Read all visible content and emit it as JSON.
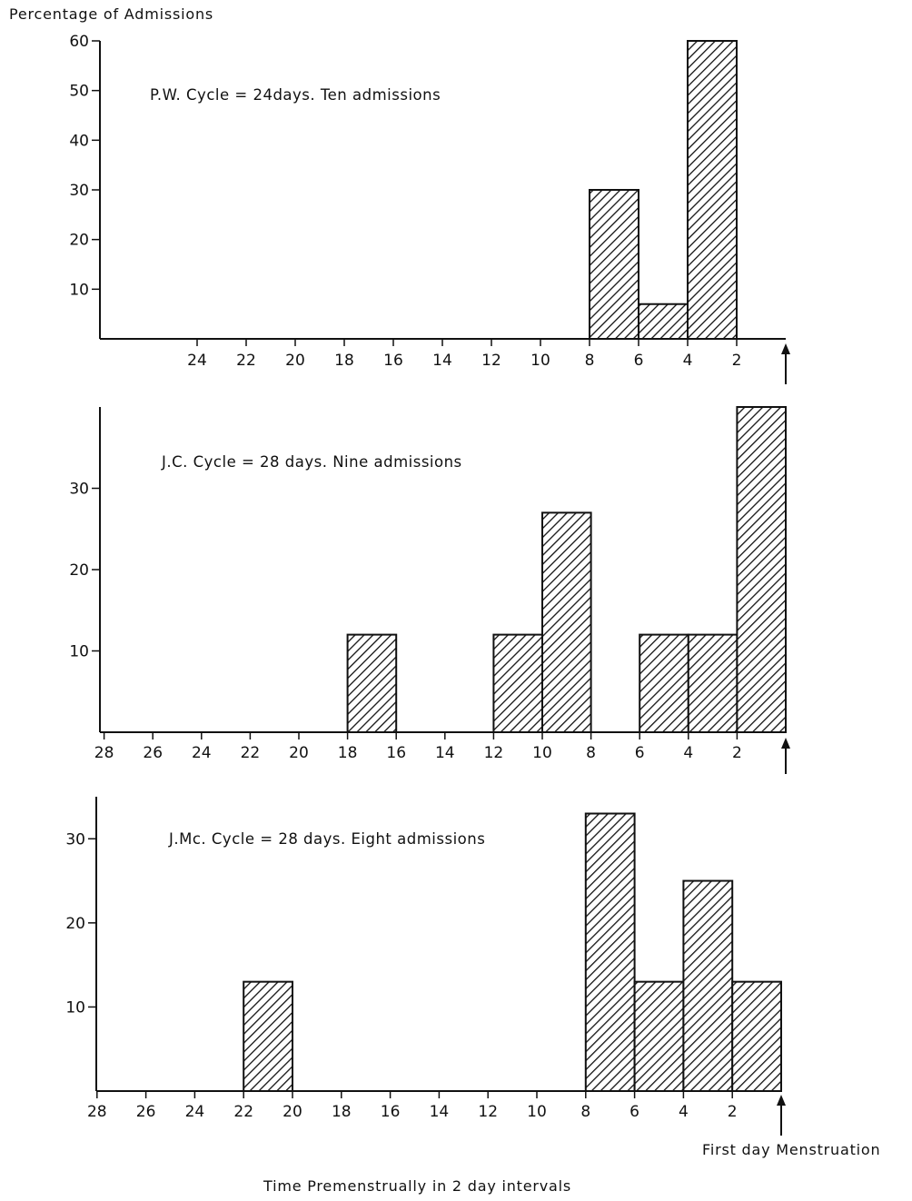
{
  "figure": {
    "yaxis_title": "Percentage of Admissions",
    "xaxis_title": "Time Premenstrually in 2 day intervals",
    "marker_label": "First day Menstruation"
  },
  "chart_data": [
    {
      "type": "bar",
      "annotation": "P.W. Cycle = 24days. Ten admissions",
      "ylim": [
        0,
        60
      ],
      "xlim": [
        0,
        26
      ],
      "yticks": [
        10,
        20,
        30,
        40,
        50,
        60
      ],
      "xticks": [
        24,
        22,
        20,
        18,
        16,
        14,
        12,
        10,
        8,
        6,
        4,
        2
      ],
      "bars": [
        {
          "from": 8,
          "to": 6,
          "value": 30
        },
        {
          "from": 6,
          "to": 4,
          "value": 7
        },
        {
          "from": 4,
          "to": 2,
          "value": 60
        }
      ],
      "hatched": true
    },
    {
      "type": "bar",
      "annotation": "J.C. Cycle = 28 days. Nine admissions",
      "ylim": [
        0,
        40
      ],
      "xlim": [
        0,
        28
      ],
      "yticks": [
        10,
        20,
        30
      ],
      "xticks": [
        28,
        26,
        24,
        22,
        20,
        18,
        16,
        14,
        12,
        10,
        8,
        6,
        4,
        2
      ],
      "bars": [
        {
          "from": 18,
          "to": 16,
          "value": 12
        },
        {
          "from": 12,
          "to": 10,
          "value": 12
        },
        {
          "from": 10,
          "to": 8,
          "value": 27
        },
        {
          "from": 6,
          "to": 4,
          "value": 12
        },
        {
          "from": 4,
          "to": 2,
          "value": 12
        },
        {
          "from": 2,
          "to": 0,
          "value": 40
        }
      ],
      "hatched": true
    },
    {
      "type": "bar",
      "annotation": "J.Mc. Cycle = 28 days. Eight admissions",
      "ylim": [
        0,
        35
      ],
      "xlim": [
        0,
        28
      ],
      "yticks": [
        10,
        20,
        30
      ],
      "xticks": [
        28,
        26,
        24,
        22,
        20,
        18,
        16,
        14,
        12,
        10,
        8,
        6,
        4,
        2
      ],
      "bars": [
        {
          "from": 22,
          "to": 20,
          "value": 13
        },
        {
          "from": 8,
          "to": 6,
          "value": 33
        },
        {
          "from": 6,
          "to": 4,
          "value": 13
        },
        {
          "from": 4,
          "to": 2,
          "value": 25
        },
        {
          "from": 2,
          "to": 0,
          "value": 13
        }
      ],
      "hatched": true
    }
  ]
}
